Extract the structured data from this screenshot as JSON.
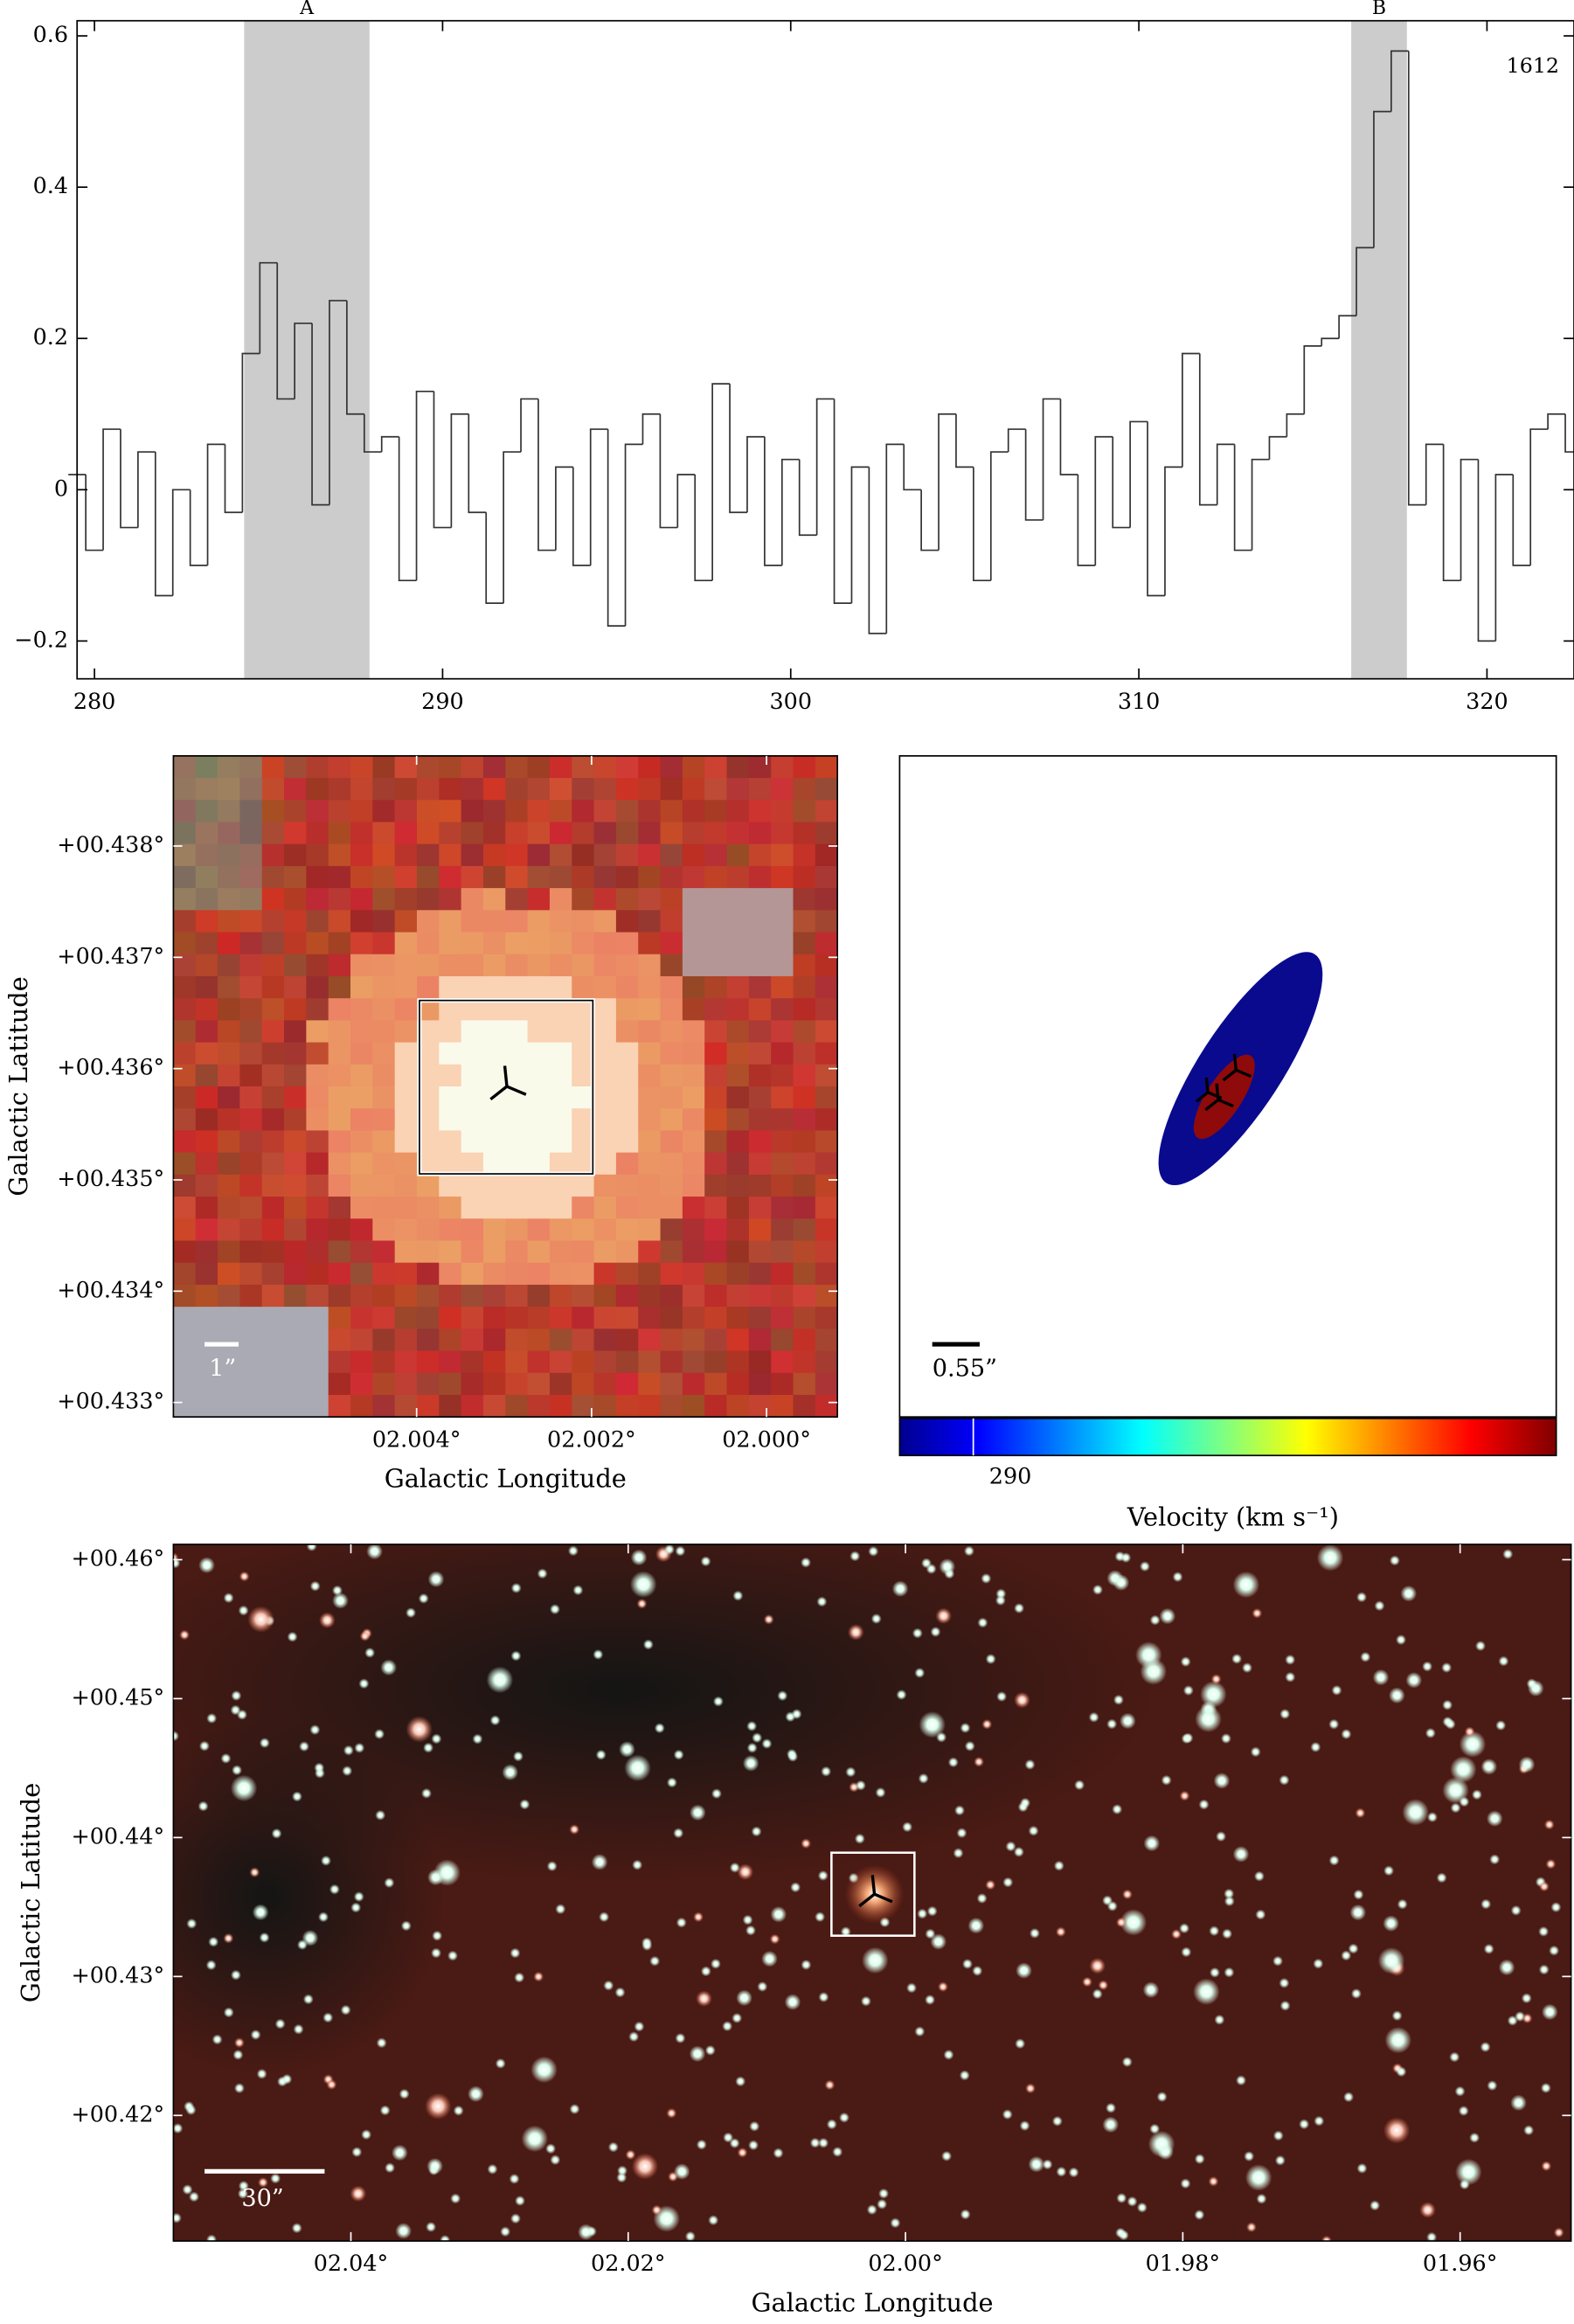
{
  "chart_data": [
    {
      "type": "step",
      "xlim": [
        279.5,
        322.5
      ],
      "ylim": [
        -0.25,
        0.62
      ],
      "xticks": [
        280,
        290,
        300,
        310,
        320
      ],
      "yticks": [
        {
          "value": -0.2,
          "label": "−0.2"
        },
        0,
        0.2,
        0.4,
        0.6
      ],
      "annotation": "1612",
      "regions": [
        {
          "label": "A",
          "range": [
            284.3,
            287.9
          ]
        },
        {
          "label": "B",
          "range": [
            316.1,
            317.7
          ]
        }
      ],
      "color": "#333333",
      "region_color": "#cccccc",
      "x": [
        279.5,
        280,
        280.5,
        281,
        281.5,
        282,
        282.5,
        283,
        283.5,
        284,
        284.5,
        285,
        285.5,
        286,
        286.5,
        287,
        287.5,
        288,
        288.5,
        289,
        289.5,
        290,
        290.5,
        291,
        291.5,
        292,
        292.5,
        293,
        293.5,
        294,
        294.5,
        295,
        295.5,
        296,
        296.5,
        297,
        297.5,
        298,
        298.5,
        299,
        299.5,
        300,
        300.5,
        301,
        301.5,
        302,
        302.5,
        303,
        303.5,
        304,
        304.5,
        305,
        305.5,
        306,
        306.5,
        307,
        307.5,
        308,
        308.5,
        309,
        309.5,
        310,
        310.5,
        311,
        311.5,
        312,
        312.5,
        313,
        313.5,
        314,
        314.5,
        315,
        315.5,
        316,
        316.5,
        317,
        317.5,
        318,
        318.5,
        319,
        319.5,
        320,
        320.5,
        321,
        321.5,
        322,
        322.5
      ],
      "values": [
        0.02,
        -0.08,
        0.08,
        -0.05,
        0.05,
        -0.14,
        0.0,
        -0.1,
        0.06,
        -0.03,
        0.18,
        0.3,
        0.12,
        0.22,
        -0.02,
        0.25,
        0.1,
        0.05,
        0.07,
        -0.12,
        0.13,
        -0.05,
        0.1,
        -0.03,
        -0.15,
        0.05,
        0.12,
        -0.08,
        0.03,
        -0.1,
        0.08,
        -0.18,
        0.06,
        0.1,
        -0.05,
        0.02,
        -0.12,
        0.14,
        -0.03,
        0.07,
        -0.1,
        0.04,
        -0.06,
        0.12,
        -0.15,
        0.03,
        -0.19,
        0.06,
        0.0,
        -0.08,
        0.1,
        0.03,
        -0.12,
        0.05,
        0.08,
        -0.04,
        0.12,
        0.02,
        -0.1,
        0.07,
        -0.05,
        0.09,
        -0.14,
        0.03,
        0.18,
        -0.02,
        0.06,
        -0.08,
        0.04,
        0.07,
        0.1,
        0.19,
        0.2,
        0.23,
        0.32,
        0.5,
        0.58,
        -0.02,
        0.06,
        -0.12,
        0.04,
        -0.2,
        0.02,
        -0.1,
        0.08,
        0.1,
        0.05
      ]
    },
    {
      "type": "image",
      "xlabel": "Galactic Longitude",
      "ylabel": "Galactic Latitude",
      "xlim": [
        2.00678,
        1.99919
      ],
      "ylim": [
        0.43287,
        0.43881
      ],
      "xticks": [
        {
          "value": 2.004,
          "label": "02.004°"
        },
        {
          "value": 2.002,
          "label": "02.002°"
        },
        {
          "value": 2.0,
          "label": "02.000°"
        }
      ],
      "yticks": [
        {
          "value": 0.433,
          "label": "+00.433°"
        },
        {
          "value": 0.434,
          "label": "+00.434°"
        },
        {
          "value": 0.435,
          "label": "+00.435°"
        },
        {
          "value": 0.436,
          "label": "+00.436°"
        },
        {
          "value": 0.437,
          "label": "+00.437°"
        },
        {
          "value": 0.438,
          "label": "+00.438°"
        }
      ],
      "scale_bar": "1”"
    },
    {
      "type": "velocity-map",
      "scale_bar": "0.55”",
      "colorbar_label": "Velocity (km s⁻¹)",
      "clim": [
        286.5,
        317.7
      ],
      "cticks": [
        290
      ]
    },
    {
      "type": "image",
      "xlabel": "Galactic Longitude",
      "ylabel": "Galactic Latitude",
      "xlim": [
        2.0528,
        1.952
      ],
      "ylim": [
        0.41096,
        0.4611
      ],
      "xticks": [
        {
          "value": 2.04,
          "label": "02.04°"
        },
        {
          "value": 2.02,
          "label": "02.02°"
        },
        {
          "value": 2.0,
          "label": "02.00°"
        },
        {
          "value": 1.98,
          "label": "01.98°"
        },
        {
          "value": 1.96,
          "label": "01.96°"
        }
      ],
      "yticks": [
        {
          "value": 0.42,
          "label": "+00.42°"
        },
        {
          "value": 0.43,
          "label": "+00.43°"
        },
        {
          "value": 0.44,
          "label": "+00.44°"
        },
        {
          "value": 0.45,
          "label": "+00.45°"
        },
        {
          "value": 0.46,
          "label": "+00.46°"
        }
      ],
      "scale_bar": "30”"
    }
  ]
}
